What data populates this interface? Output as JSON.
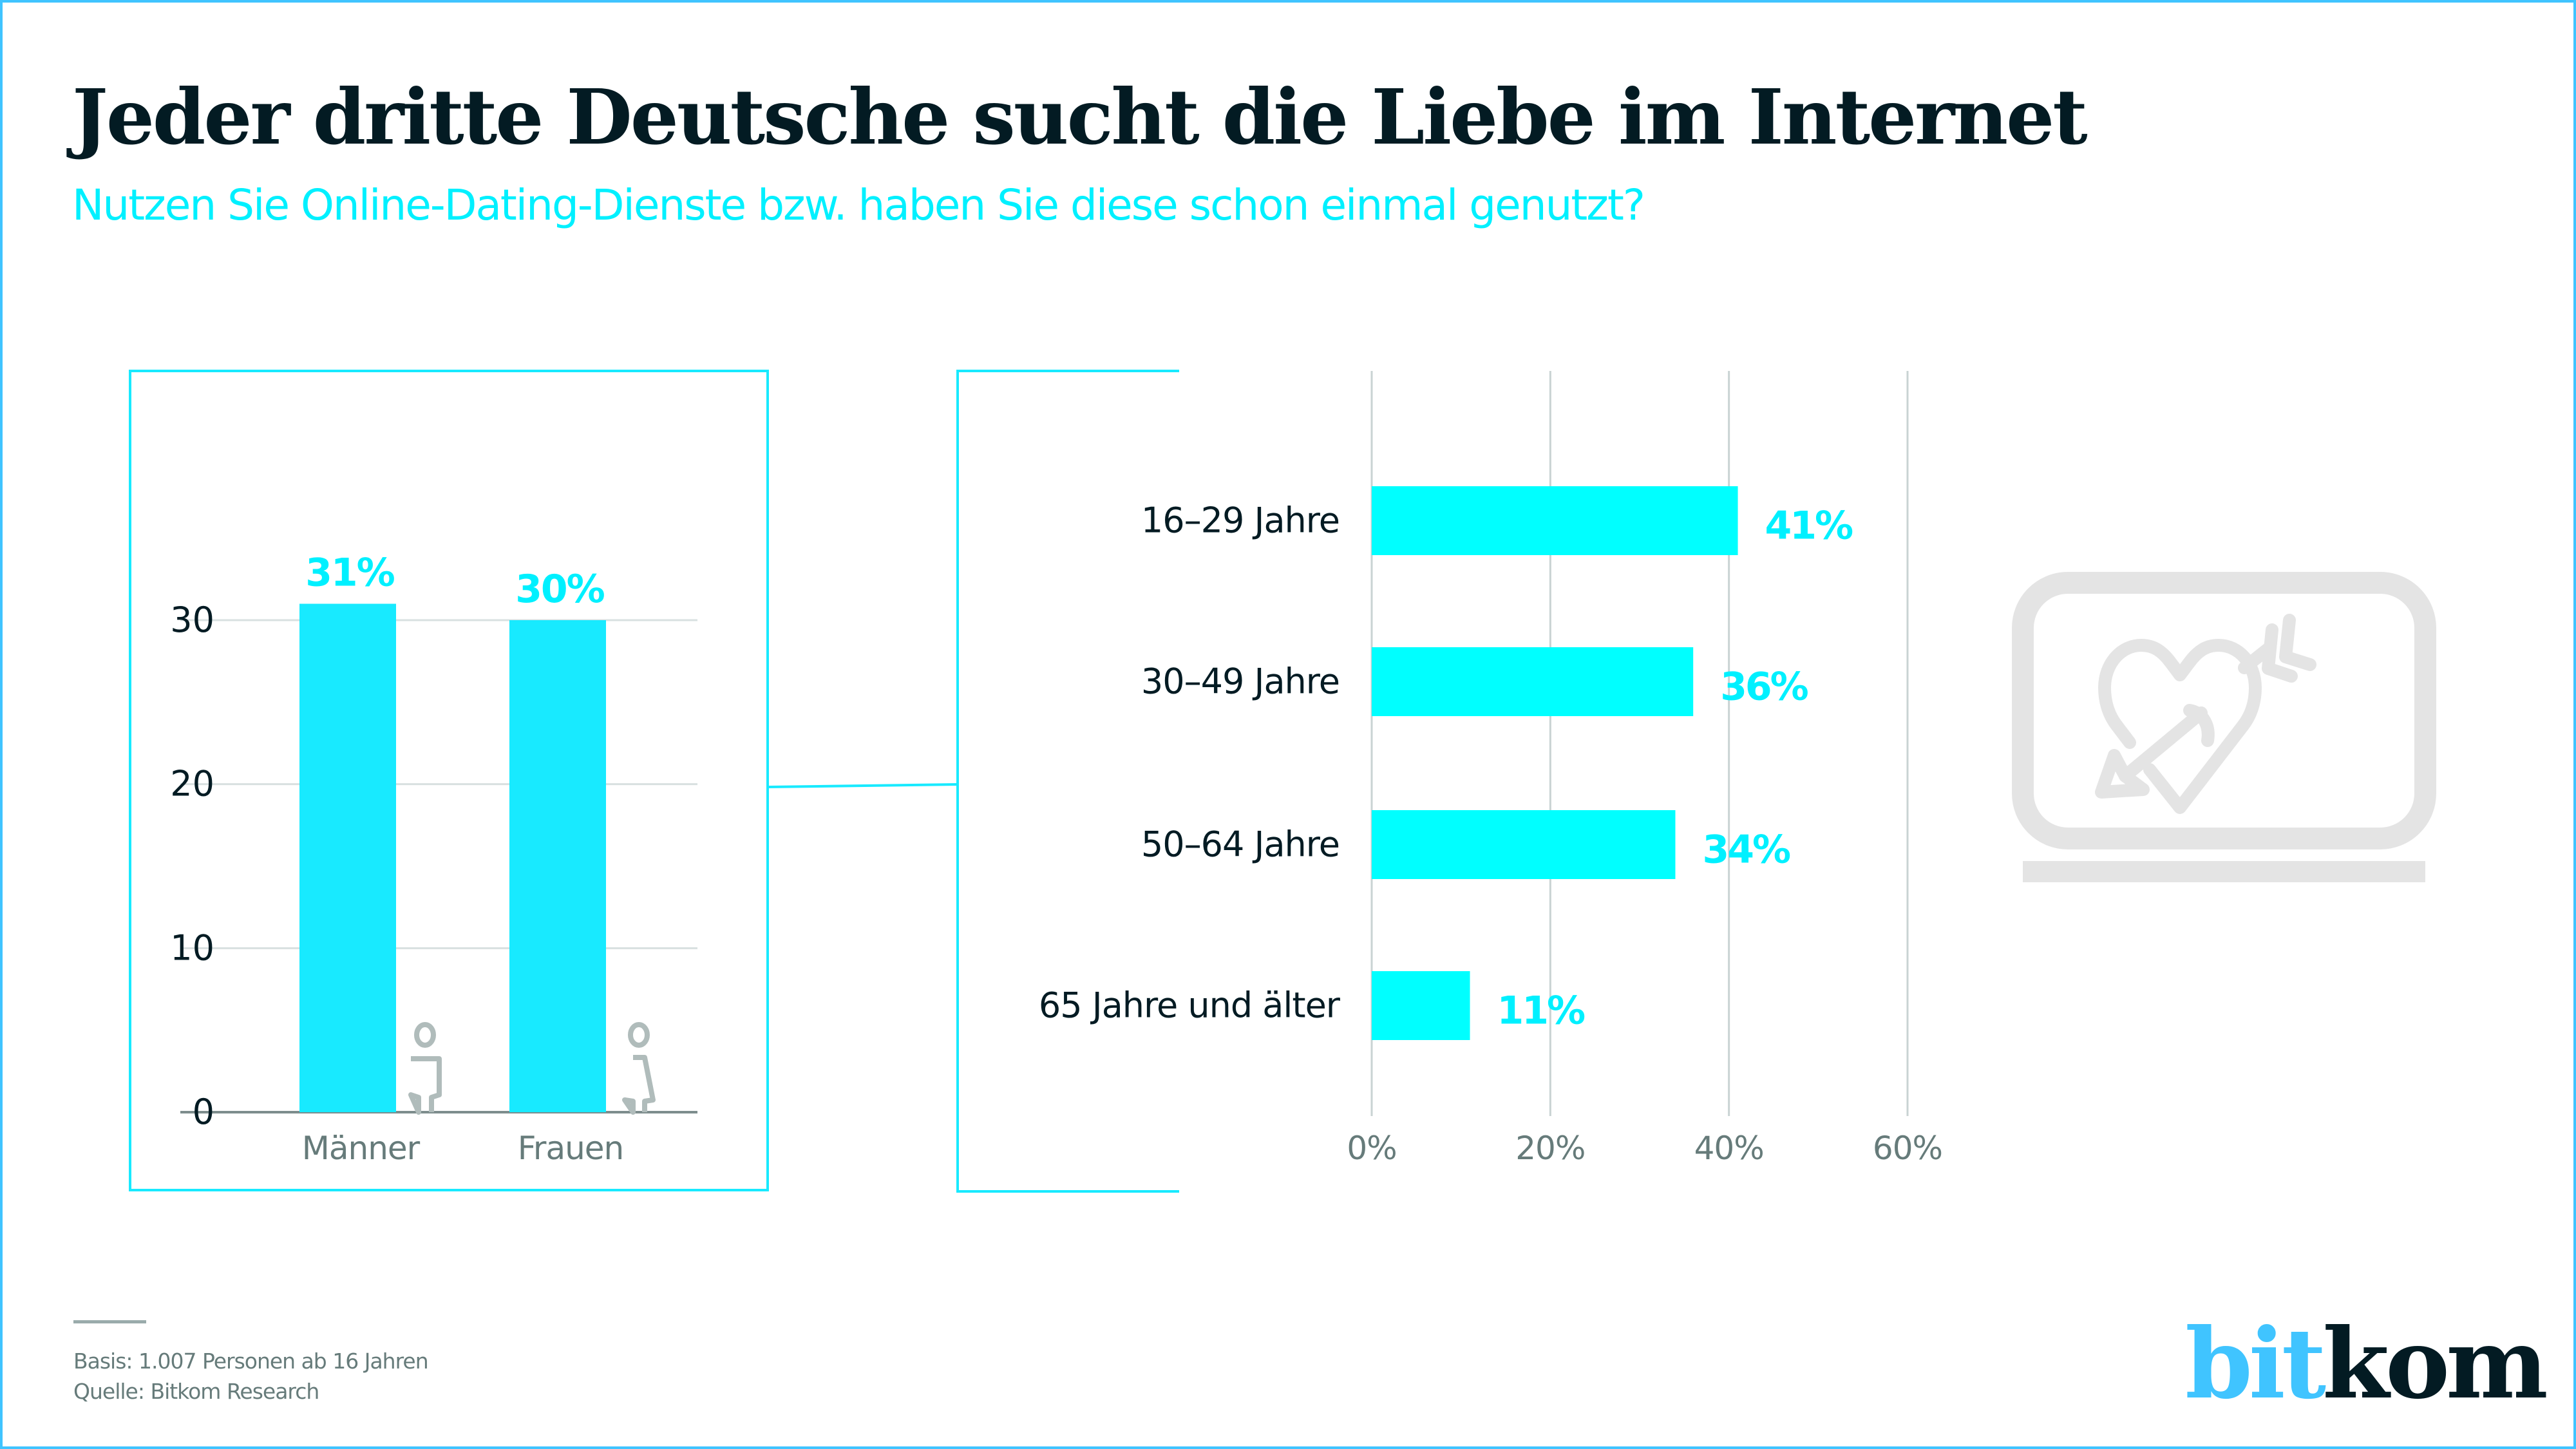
{
  "header": {
    "title": "Jeder dritte Deutsche sucht die Liebe im Internet",
    "subtitle": "Nutzen Sie Online-Dating-Dienste bzw. haben Sie diese schon einmal genutzt?"
  },
  "colors": {
    "accent": "#00f0ff",
    "bar": "#18eaff",
    "frame": "#40c4ff",
    "text_dark": "#031b23",
    "text_gray": "#667b7a",
    "grid": "#c9d3d3",
    "icon_gray": "#b0bcbb",
    "laptop_gray": "#e4e4e4",
    "logo_blue": "#40c4ff"
  },
  "chart_data": [
    {
      "type": "bar",
      "orientation": "vertical",
      "categories": [
        "Männer",
        "Frauen"
      ],
      "values": [
        31,
        30
      ],
      "data_labels": [
        "31%",
        "30%"
      ],
      "category_icons": [
        "male-person-icon",
        "female-person-icon"
      ],
      "yticks": [
        0,
        10,
        20,
        30
      ],
      "ytick_labels": [
        "0",
        "10",
        "20",
        "30"
      ],
      "ylim": [
        0,
        30
      ],
      "grid": true,
      "title": "",
      "xlabel": "",
      "ylabel": ""
    },
    {
      "type": "bar",
      "orientation": "horizontal",
      "categories": [
        "16–29 Jahre",
        "30–49 Jahre",
        "50–64 Jahre",
        "65 Jahre und älter"
      ],
      "values": [
        41,
        36,
        34,
        11
      ],
      "data_labels": [
        "41%",
        "36%",
        "34%",
        "11%"
      ],
      "xticks": [
        0,
        20,
        40,
        60
      ],
      "xtick_labels": [
        "0%",
        "20%",
        "40%",
        "60%"
      ],
      "xlim": [
        0,
        60
      ],
      "grid": true,
      "title": "",
      "xlabel": "",
      "ylabel": ""
    }
  ],
  "decoration": {
    "icon": "laptop-heart-arrow-icon"
  },
  "footer": {
    "basis": "Basis: 1.007 Personen ab 16 Jahren",
    "source": "Quelle: Bitkom Research"
  },
  "logo": {
    "part1": "bit",
    "part2": "kom"
  }
}
